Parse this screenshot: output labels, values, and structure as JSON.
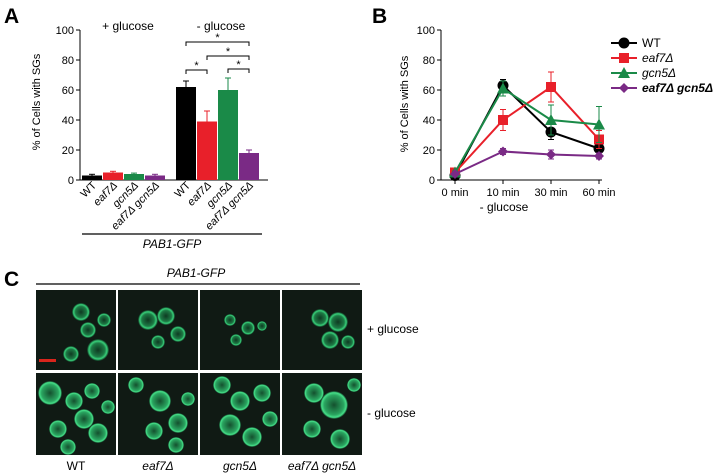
{
  "panel_labels": {
    "a": "A",
    "b": "B",
    "c": "C"
  },
  "colors": {
    "wt": "#000000",
    "eaf7": "#e8202a",
    "gcn5": "#1a8a48",
    "double": "#7a2a85",
    "scale_bar": "#d9251c"
  },
  "chart_data": [
    {
      "panel": "A",
      "type": "bar",
      "ylabel": "% of Cells with SGs",
      "ylim": [
        0,
        100
      ],
      "yticks": [
        0,
        20,
        40,
        60,
        80,
        100
      ],
      "group_labels": [
        "+ glucose",
        "- glucose"
      ],
      "categories": [
        "WT",
        "eaf7Δ",
        "gcn5Δ",
        "eaf7Δ gcn5Δ"
      ],
      "groups": [
        {
          "label": "+ glucose",
          "values": [
            3,
            5,
            4,
            3
          ],
          "errors": [
            0.8,
            0.8,
            0.6,
            0.8
          ]
        },
        {
          "label": "- glucose",
          "values": [
            62,
            39,
            60,
            18
          ],
          "errors": [
            4,
            7,
            8,
            2
          ]
        }
      ],
      "strain_label": "PAB1-GFP",
      "significance": [
        {
          "from": 0,
          "to": 1,
          "label": "*"
        },
        {
          "from": 0,
          "to": 3,
          "label": "*"
        },
        {
          "from": 1,
          "to": 3,
          "label": "*"
        },
        {
          "from": 2,
          "to": 3,
          "label": "*"
        }
      ]
    },
    {
      "panel": "B",
      "type": "line",
      "ylabel": "% of Cells with SGs",
      "xlabel": "- glucose",
      "ylim": [
        0,
        100
      ],
      "yticks": [
        0,
        20,
        40,
        60,
        80,
        100
      ],
      "categories": [
        "0 min",
        "10 min",
        "30 min",
        "60 min"
      ],
      "legend_position": "top-right",
      "series": [
        {
          "name": "WT",
          "values": [
            3,
            63,
            32,
            21
          ],
          "errors": [
            1,
            4,
            5,
            3
          ]
        },
        {
          "name": "eaf7Δ",
          "values": [
            5,
            40,
            62,
            27
          ],
          "errors": [
            1,
            7,
            10,
            6
          ]
        },
        {
          "name": "gcn5Δ",
          "values": [
            5,
            61,
            40,
            37
          ],
          "errors": [
            1,
            5,
            10,
            12
          ]
        },
        {
          "name": "eaf7Δ gcn5Δ",
          "values": [
            4,
            19,
            17,
            16
          ],
          "errors": [
            1,
            2,
            3,
            2
          ]
        }
      ]
    }
  ],
  "panel_c": {
    "strain_label": "PAB1-GFP",
    "row_labels": [
      "+ glucose",
      "- glucose"
    ],
    "column_labels": [
      "WT",
      "eaf7Δ",
      "gcn5Δ",
      "eaf7Δ gcn5Δ"
    ]
  }
}
